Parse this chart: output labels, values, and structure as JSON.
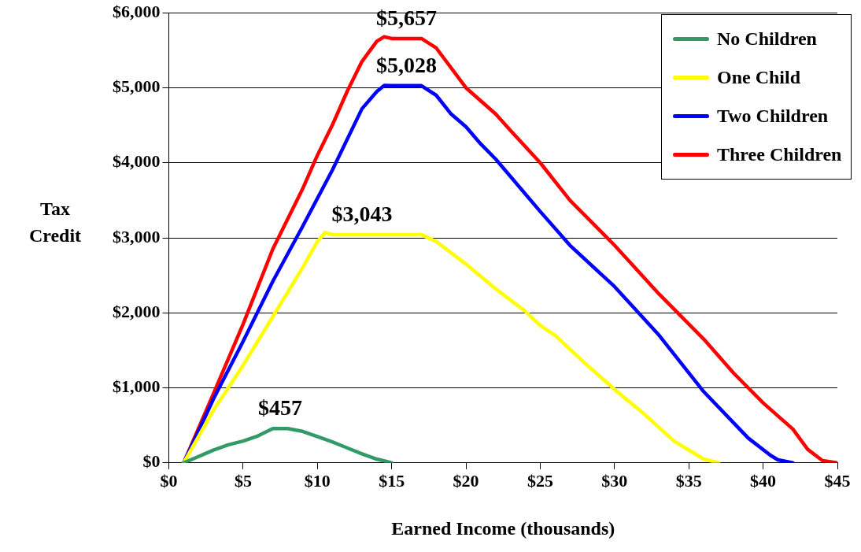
{
  "chart_data": {
    "type": "line",
    "xlabel": "Earned Income (thousands)",
    "ylabel": "Tax Credit",
    "xlim": [
      0,
      45
    ],
    "ylim": [
      0,
      6000
    ],
    "xticks": [
      {
        "value": 0,
        "label": "$0"
      },
      {
        "value": 5,
        "label": "$5"
      },
      {
        "value": 10,
        "label": "$10"
      },
      {
        "value": 15,
        "label": "$15"
      },
      {
        "value": 20,
        "label": "$20"
      },
      {
        "value": 25,
        "label": "$25"
      },
      {
        "value": 30,
        "label": "$30"
      },
      {
        "value": 35,
        "label": "$35"
      },
      {
        "value": 40,
        "label": "$40"
      },
      {
        "value": 45,
        "label": "$45"
      }
    ],
    "yticks": [
      {
        "value": 0,
        "label": "$0"
      },
      {
        "value": 1000,
        "label": "$1,000"
      },
      {
        "value": 2000,
        "label": "$2,000"
      },
      {
        "value": 3000,
        "label": "$3,000"
      },
      {
        "value": 4000,
        "label": "$4,000"
      },
      {
        "value": 5000,
        "label": "$5,000"
      },
      {
        "value": 6000,
        "label": "$6,000"
      }
    ],
    "grid": "y",
    "legend": "top right",
    "marker": "none",
    "line_style": "solid",
    "series": [
      {
        "name": "No Children",
        "color": "#339966",
        "x": [
          1,
          3,
          4,
          5,
          6,
          7,
          8,
          9,
          10,
          11,
          12,
          13,
          14,
          15
        ],
        "values": [
          0,
          170,
          240,
          290,
          360,
          457,
          457,
          420,
          350,
          280,
          200,
          120,
          50,
          0
        ]
      },
      {
        "name": "One Child",
        "color": "#ffff00",
        "x": [
          1,
          3,
          5,
          7,
          9,
          10,
          10.5,
          11,
          17,
          18,
          20,
          22,
          24,
          25,
          26,
          28,
          30,
          32,
          34,
          36,
          37
        ],
        "values": [
          0,
          700,
          1300,
          1950,
          2600,
          2950,
          3070,
          3043,
          3043,
          2950,
          2650,
          2320,
          2020,
          1830,
          1700,
          1330,
          980,
          650,
          290,
          50,
          0
        ]
      },
      {
        "name": "Two Children",
        "color": "#0000ff",
        "x": [
          1,
          3,
          5,
          7,
          9,
          11,
          13,
          14,
          14.5,
          15,
          17,
          18,
          19,
          20,
          21,
          22,
          25,
          27,
          30,
          33,
          36,
          39,
          40.5,
          41,
          42
        ],
        "values": [
          0,
          850,
          1620,
          2420,
          3150,
          3900,
          4720,
          4950,
          5030,
          5028,
          5028,
          4900,
          4650,
          4480,
          4250,
          4050,
          3350,
          2900,
          2350,
          1700,
          950,
          330,
          100,
          40,
          0
        ]
      },
      {
        "name": "Three Children",
        "color": "#ff0000",
        "x": [
          1,
          3,
          5,
          7,
          9,
          10,
          11,
          12,
          13,
          14,
          14.5,
          15,
          17,
          18,
          20,
          22,
          23,
          25,
          27,
          30,
          33,
          36,
          38,
          40,
          42,
          43,
          44,
          45
        ],
        "values": [
          0,
          920,
          1850,
          2850,
          3650,
          4100,
          4500,
          4950,
          5350,
          5620,
          5680,
          5657,
          5657,
          5530,
          5000,
          4650,
          4430,
          4000,
          3500,
          2900,
          2250,
          1650,
          1200,
          800,
          450,
          180,
          30,
          0
        ]
      }
    ],
    "annotations": [
      {
        "text": "$457",
        "x": 7.5,
        "y": 457
      },
      {
        "text": "$3,043",
        "x": 13,
        "y": 3043
      },
      {
        "text": "$5,028",
        "x": 16,
        "y": 5028
      },
      {
        "text": "$5,657",
        "x": 16,
        "y": 5657
      }
    ]
  }
}
